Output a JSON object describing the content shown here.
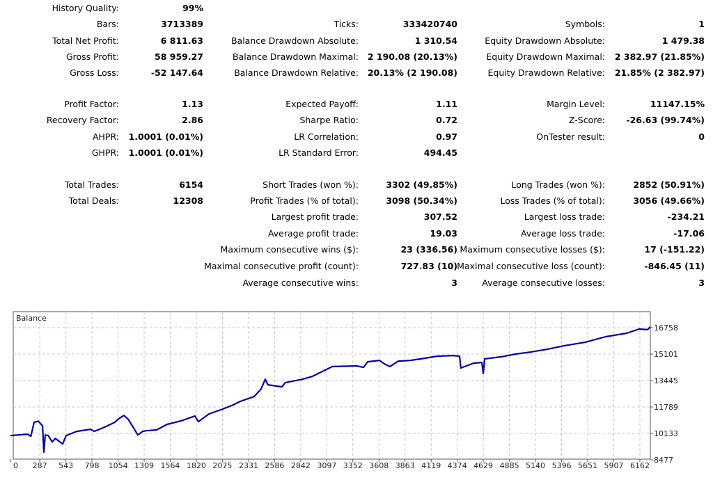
{
  "stats": {
    "rows": [
      [
        "History Quality:",
        "99%",
        "",
        "",
        "",
        ""
      ],
      [
        "Bars:",
        "3713389",
        "Ticks:",
        "333420740",
        "Symbols:",
        "1"
      ],
      [
        "Total Net Profit:",
        "6 811.63",
        "Balance Drawdown Absolute:",
        "1 310.54",
        "Equity Drawdown Absolute:",
        "1 479.38"
      ],
      [
        "Gross Profit:",
        "58 959.27",
        "Balance Drawdown Maximal:",
        "2 190.08 (20.13%)",
        "Equity Drawdown Maximal:",
        "2 382.97 (21.85%)"
      ],
      [
        "Gross Loss:",
        "-52 147.64",
        "Balance Drawdown Relative:",
        "20.13% (2 190.08)",
        "Equity Drawdown Relative:",
        "21.85% (2 382.97)"
      ],
      [
        "Profit Factor:",
        "1.13",
        "Expected Payoff:",
        "1.11",
        "Margin Level:",
        "11147.15%"
      ],
      [
        "Recovery Factor:",
        "2.86",
        "Sharpe Ratio:",
        "0.72",
        "Z-Score:",
        "-26.63 (99.74%)"
      ],
      [
        "AHPR:",
        "1.0001 (0.01%)",
        "LR Correlation:",
        "0.97",
        "OnTester result:",
        "0"
      ],
      [
        "GHPR:",
        "1.0001 (0.01%)",
        "LR Standard Error:",
        "494.45",
        "",
        ""
      ],
      [
        "Total Trades:",
        "6154",
        "Short Trades (won %):",
        "3302 (49.85%)",
        "Long Trades (won %):",
        "2852 (50.91%)"
      ],
      [
        "Total Deals:",
        "12308",
        "Profit Trades (% of total):",
        "3098 (50.34%)",
        "Loss Trades (% of total):",
        "3056 (49.66%)"
      ],
      [
        "",
        "",
        "Largest profit trade:",
        "307.52",
        "Largest loss trade:",
        "-234.21"
      ],
      [
        "",
        "",
        "Average profit trade:",
        "19.03",
        "Average loss trade:",
        "-17.06"
      ],
      [
        "",
        "",
        "Maximum consecutive wins ($):",
        "23 (336.56)",
        "Maximum consecutive losses ($):",
        "17 (-151.22)"
      ],
      [
        "",
        "",
        "Maximal consecutive profit (count):",
        "727.83 (10)",
        "Maximal consecutive loss (count):",
        "-846.45 (11)"
      ],
      [
        "",
        "",
        "Average consecutive wins:",
        "3",
        "Average consecutive losses:",
        "3"
      ]
    ]
  },
  "chart_data": {
    "type": "line",
    "title": "Balance",
    "series": [
      {
        "name": "Balance",
        "color": "#0000b0"
      }
    ],
    "xlim": [
      0,
      6264
    ],
    "ylim": [
      8477,
      17300
    ],
    "x_ticks": [
      "0",
      "287",
      "543",
      "798",
      "1054",
      "1309",
      "1564",
      "1820",
      "2075",
      "2331",
      "2586",
      "2842",
      "3097",
      "3352",
      "3608",
      "3863",
      "4119",
      "4374",
      "4629",
      "4885",
      "5140",
      "5396",
      "5651",
      "5907",
      "6162"
    ],
    "y_ticks": [
      "16758",
      "15101",
      "13445",
      "11789",
      "10133",
      "8477"
    ],
    "grid": true,
    "points": [
      [
        0,
        10000
      ],
      [
        170,
        10080
      ],
      [
        200,
        9950
      ],
      [
        232,
        10830
      ],
      [
        273,
        10900
      ],
      [
        314,
        10610
      ],
      [
        327,
        8960
      ],
      [
        341,
        10040
      ],
      [
        370,
        10000
      ],
      [
        409,
        9600
      ],
      [
        440,
        9820
      ],
      [
        511,
        9470
      ],
      [
        545,
        10000
      ],
      [
        648,
        10260
      ],
      [
        784,
        10390
      ],
      [
        820,
        10260
      ],
      [
        920,
        10520
      ],
      [
        1022,
        10830
      ],
      [
        1057,
        11040
      ],
      [
        1111,
        11260
      ],
      [
        1150,
        11040
      ],
      [
        1193,
        10610
      ],
      [
        1247,
        10040
      ],
      [
        1295,
        10260
      ],
      [
        1329,
        10300
      ],
      [
        1431,
        10350
      ],
      [
        1534,
        10700
      ],
      [
        1670,
        10920
      ],
      [
        1806,
        11220
      ],
      [
        1840,
        10870
      ],
      [
        1943,
        11350
      ],
      [
        2079,
        11660
      ],
      [
        2181,
        11920
      ],
      [
        2249,
        12140
      ],
      [
        2386,
        12440
      ],
      [
        2454,
        12920
      ],
      [
        2495,
        13530
      ],
      [
        2520,
        13180
      ],
      [
        2658,
        13050
      ],
      [
        2690,
        13310
      ],
      [
        2862,
        13530
      ],
      [
        2952,
        13700
      ],
      [
        3152,
        14320
      ],
      [
        3388,
        14360
      ],
      [
        3456,
        14270
      ],
      [
        3497,
        14620
      ],
      [
        3613,
        14710
      ],
      [
        3660,
        14490
      ],
      [
        3715,
        14320
      ],
      [
        3797,
        14660
      ],
      [
        3920,
        14710
      ],
      [
        4056,
        14840
      ],
      [
        4179,
        14970
      ],
      [
        4329,
        15010
      ],
      [
        4397,
        14970
      ],
      [
        4410,
        14230
      ],
      [
        4533,
        14530
      ],
      [
        4615,
        14580
      ],
      [
        4629,
        13880
      ],
      [
        4642,
        14800
      ],
      [
        4806,
        14930
      ],
      [
        4942,
        15100
      ],
      [
        5092,
        15230
      ],
      [
        5249,
        15400
      ],
      [
        5419,
        15620
      ],
      [
        5624,
        15840
      ],
      [
        5828,
        16190
      ],
      [
        6033,
        16410
      ],
      [
        6155,
        16670
      ],
      [
        6237,
        16630
      ],
      [
        6264,
        16810
      ]
    ]
  }
}
